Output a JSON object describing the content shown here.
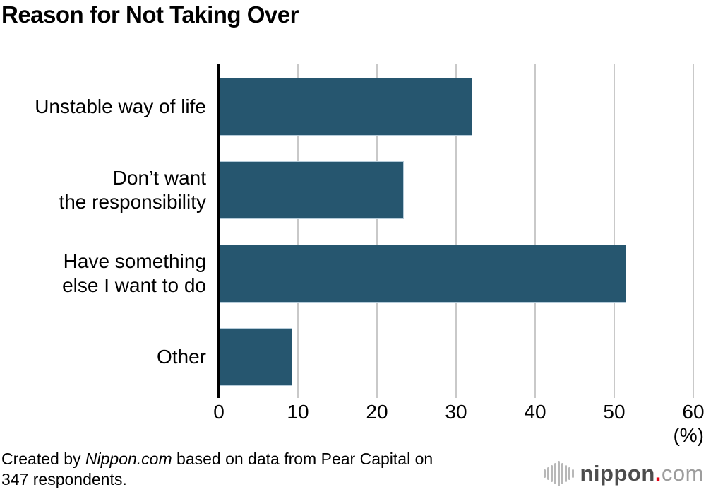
{
  "title": "Reason for Not Taking Over",
  "chart_data": {
    "type": "bar",
    "orientation": "horizontal",
    "title": "Reason for Not Taking Over",
    "categories": [
      "Unstable way of life",
      "Don’t want\nthe responsibility",
      "Have something\nelse I want to do",
      "Other"
    ],
    "values": [
      32,
      23.3,
      51.4,
      9.2
    ],
    "xlabel": "(%)",
    "ylabel": "",
    "xlim": [
      0,
      60
    ],
    "xticks": [
      0,
      10,
      20,
      30,
      40,
      50,
      60
    ],
    "grid": true,
    "legend": false,
    "colors": {
      "bar": "#26566f",
      "bar_border": "#b5cbd9",
      "gridline": "#c9c9c9",
      "axis": "#000000"
    }
  },
  "footer": {
    "credit_prefix": "Created by ",
    "credit_source": "Nippon.com",
    "credit_suffix": " based on data from Pear Capital on",
    "credit_line2": "347 respondents."
  },
  "logo": {
    "icon": "soundwave-bars-icon",
    "name": "nippon",
    "dot": ".",
    "tld": "com",
    "colors": {
      "icon": "#b8b8b8",
      "name": "#4d4d4d",
      "dot": "#e60012",
      "tld": "#9d9d9d"
    }
  }
}
